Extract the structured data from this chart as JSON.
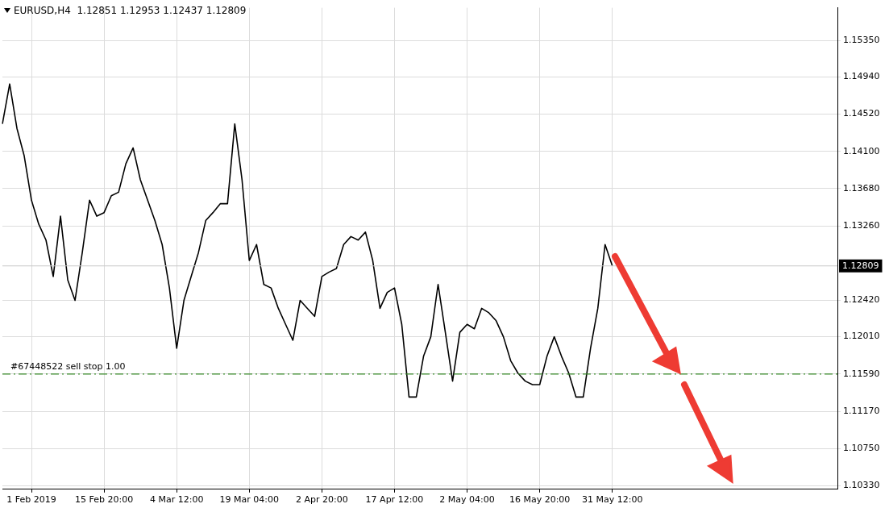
{
  "chart_data": {
    "type": "line",
    "title": "EURUSD,H4  1.12851 1.12953 1.12437 1.12809",
    "categories": [
      null,
      null,
      null,
      null,
      "1 Feb 2019",
      null,
      null,
      null,
      null,
      null,
      null,
      null,
      null,
      null,
      "15 Feb 20:00",
      null,
      null,
      null,
      null,
      null,
      null,
      null,
      null,
      null,
      "4 Mar 12:00",
      null,
      null,
      null,
      null,
      null,
      null,
      null,
      null,
      null,
      "19 Mar 04:00",
      null,
      null,
      null,
      null,
      null,
      null,
      null,
      null,
      null,
      "2 Apr 20:00",
      null,
      null,
      null,
      null,
      null,
      null,
      null,
      null,
      null,
      "17 Apr 12:00",
      null,
      null,
      null,
      null,
      null,
      null,
      null,
      null,
      null,
      "2 May 04:00",
      null,
      null,
      null,
      null,
      null,
      null,
      null,
      null,
      null,
      "16 May 20:00",
      null,
      null,
      null,
      null,
      null,
      null,
      null,
      null,
      null,
      "31 May 12:00",
      null,
      null,
      null,
      null,
      null,
      null,
      null,
      null,
      null,
      null,
      null,
      null,
      null,
      null,
      null,
      null,
      null,
      null,
      null,
      null,
      null,
      null,
      null,
      null,
      null,
      null,
      null,
      null,
      null,
      null,
      null
    ],
    "series": [
      {
        "color": "#000000",
        "values": [
          1.1441,
          1.1486,
          1.1436,
          1.1405,
          1.1355,
          1.1328,
          1.131,
          1.1269,
          1.1337,
          1.1265,
          1.1242,
          1.1296,
          1.1355,
          1.1337,
          1.1341,
          1.136,
          1.1364,
          1.1396,
          1.1414,
          1.1378,
          1.1355,
          1.1332,
          1.1305,
          1.1256,
          1.1188,
          1.1242,
          1.1269,
          1.1296,
          1.1332,
          1.1341,
          1.1351,
          1.1351,
          1.1441,
          1.1378,
          1.1287,
          1.1305,
          1.126,
          1.1256,
          1.1233,
          1.1215,
          1.1197,
          1.1242,
          1.1233,
          1.1224,
          1.1269,
          1.1274,
          1.1278,
          1.1305,
          1.1314,
          1.131,
          1.1319,
          1.1287,
          1.1233,
          1.1251,
          1.1256,
          1.1215,
          1.1133,
          1.1133,
          1.1179,
          1.1201,
          1.126,
          1.1206,
          1.1151,
          1.1206,
          1.1215,
          1.121,
          1.1233,
          1.1228,
          1.1219,
          1.1201,
          1.1174,
          1.116,
          1.1151,
          1.1147,
          1.1147,
          1.1179,
          1.1201,
          1.1179,
          1.116,
          1.1133,
          1.1133,
          1.1188,
          1.1233,
          1.1305,
          1.1281,
          null,
          null,
          null,
          null,
          null,
          null,
          null,
          null,
          null,
          null,
          null,
          null,
          null,
          null,
          null,
          null,
          null,
          null,
          null,
          null,
          null,
          null,
          null,
          null,
          null,
          null,
          null,
          null,
          null,
          null,
          null
        ]
      }
    ],
    "ylim": [
      1.1029,
      1.1572
    ],
    "yticks": [
      {
        "value": 1.1033,
        "label": "1.10330"
      },
      {
        "value": 1.1075,
        "label": "1.10750"
      },
      {
        "value": 1.1117,
        "label": "1.11170"
      },
      {
        "value": 1.1159,
        "label": "1.11590"
      },
      {
        "value": 1.1201,
        "label": "1.12010"
      },
      {
        "value": 1.1242,
        "label": "1.12420"
      },
      {
        "value": 1.1326,
        "label": "1.13260"
      },
      {
        "value": 1.1368,
        "label": "1.13680"
      },
      {
        "value": 1.141,
        "label": "1.14100"
      },
      {
        "value": 1.1452,
        "label": "1.14520"
      },
      {
        "value": 1.1494,
        "label": "1.14940"
      },
      {
        "value": 1.1535,
        "label": "1.15350"
      }
    ],
    "ref_lines": [
      {
        "axis": "y",
        "value": 1.1159,
        "label": "#67448522 sell stop 1.00",
        "color": "#3a8a2a",
        "line_style": "dashdot"
      },
      {
        "axis": "y",
        "value": 1.12809,
        "label": "1.12809",
        "color": "#c8c8c8",
        "line_style": "solid"
      }
    ],
    "grid": true,
    "marker": "none",
    "line_style": "solid",
    "legend": false
  }
}
